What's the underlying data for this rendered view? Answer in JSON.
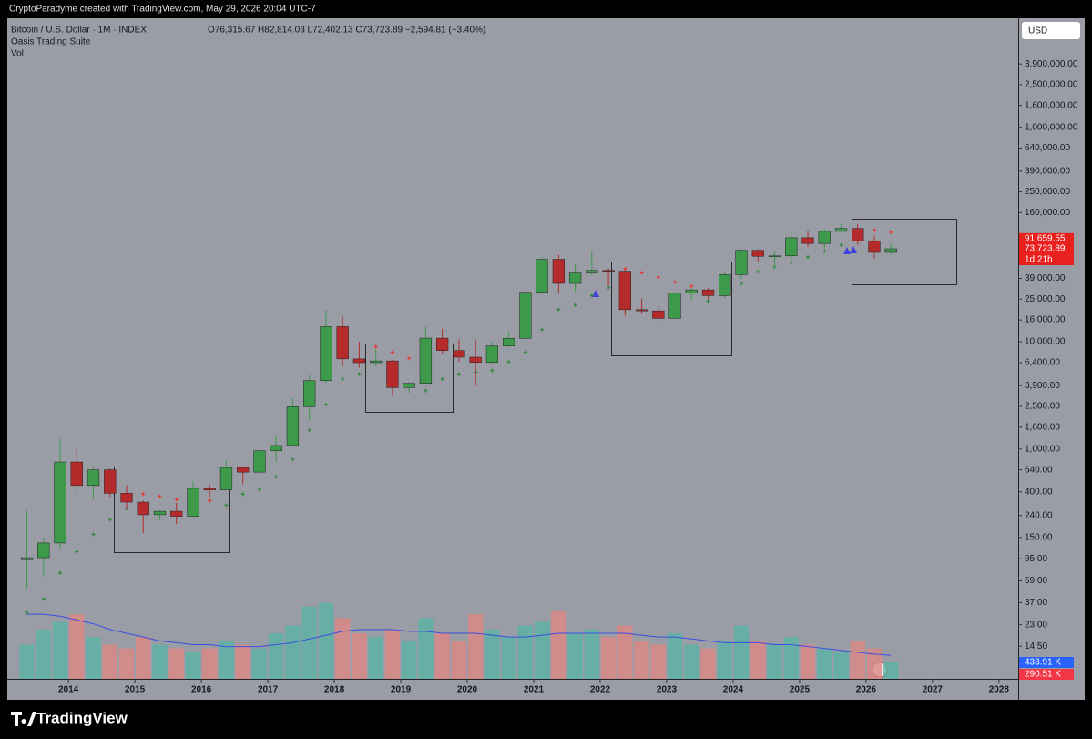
{
  "chart_data": {
    "type": "candlestick",
    "attribution": "CryptoParadyme created with TradingView.com, May 29, 2026 20:04 UTC-7",
    "title": "Bitcoin / U.S. Dollar · 1M · INDEX",
    "ohlc_line": "O76,315.67 H82,814.03 L72,402.13 C73,723.89 −2,594.81 (−3.40%)",
    "indicator": "Oasis Trading Suite",
    "volume_name": "Vol",
    "currency": "USD",
    "brand": "TradingView",
    "log_scale": true,
    "up_color": "#3c9a4a",
    "down_color": "#b52a2a",
    "x": [
      2013.375,
      2013.625,
      2013.875,
      2014.125,
      2014.375,
      2014.625,
      2014.875,
      2015.125,
      2015.375,
      2015.625,
      2015.875,
      2016.125,
      2016.375,
      2016.625,
      2016.875,
      2017.125,
      2017.375,
      2017.625,
      2017.875,
      2018.125,
      2018.375,
      2018.625,
      2018.875,
      2019.125,
      2019.375,
      2019.625,
      2019.875,
      2020.125,
      2020.375,
      2020.625,
      2020.875,
      2021.125,
      2021.375,
      2021.625,
      2021.875,
      2022.125,
      2022.375,
      2022.625,
      2022.875,
      2023.125,
      2023.375,
      2023.625,
      2023.875,
      2024.125,
      2024.375,
      2024.625,
      2024.875,
      2025.125,
      2025.375,
      2025.625,
      2025.875,
      2026.125,
      2026.375
    ],
    "open": [
      93,
      97,
      133,
      757,
      457,
      640,
      387,
      320,
      244,
      263,
      236,
      430,
      416,
      673,
      609,
      963,
      1079,
      2480,
      4338,
      13860,
      6930,
      6390,
      6630,
      3740,
      4100,
      10820,
      8290,
      7190,
      6420,
      9140,
      10780,
      28990,
      58800,
      35040,
      43830,
      46310,
      45540,
      19930,
      19430,
      16550,
      28480,
      30480,
      26970,
      42280,
      71300,
      62680,
      63300,
      93430,
      82550,
      107150,
      114050,
      87500,
      68200
    ],
    "high": [
      266,
      150,
      1240,
      1000,
      680,
      660,
      460,
      330,
      265,
      315,
      500,
      465,
      780,
      680,
      980,
      1350,
      2990,
      4980,
      19780,
      17250,
      9990,
      8490,
      6780,
      4210,
      13880,
      13200,
      10540,
      10500,
      10070,
      12480,
      29300,
      61780,
      64900,
      53000,
      69000,
      48240,
      47440,
      25210,
      21480,
      29190,
      31430,
      31800,
      44700,
      73780,
      72800,
      70000,
      108300,
      109300,
      111900,
      124100,
      126200,
      97900,
      82814.03
    ],
    "low": [
      50,
      65,
      118,
      410,
      340,
      360,
      275,
      165,
      215,
      200,
      236,
      360,
      416,
      470,
      600,
      750,
      1070,
      1840,
      4110,
      5920,
      5760,
      5860,
      3120,
      3350,
      4080,
      7710,
      6510,
      3850,
      6150,
      8900,
      10370,
      28130,
      28800,
      29280,
      42000,
      32930,
      17570,
      18150,
      15480,
      16490,
      24750,
      24920,
      26560,
      38500,
      56500,
      49000,
      58900,
      76600,
      74400,
      105300,
      80600,
      60000,
      65000
    ],
    "close": [
      97,
      133,
      757,
      457,
      640,
      387,
      320,
      244,
      263,
      236,
      430,
      416,
      673,
      609,
      963,
      1079,
      2480,
      4338,
      13860,
      6930,
      6390,
      6630,
      3740,
      4100,
      10820,
      8290,
      7190,
      6420,
      9140,
      10780,
      28990,
      58800,
      35040,
      43830,
      46310,
      45540,
      19930,
      19430,
      16550,
      28480,
      30480,
      26970,
      42280,
      71300,
      62680,
      63300,
      93430,
      82550,
      107150,
      114050,
      87500,
      68200,
      73723.89
    ],
    "trail": {
      "values": [
        30,
        40,
        70,
        110,
        160,
        220,
        280,
        380,
        360,
        340,
        320,
        330,
        300,
        380,
        420,
        550,
        800,
        1500,
        2600,
        4500,
        5000,
        9000,
        8000,
        7000,
        3500,
        4500,
        5000,
        5200,
        5400,
        6500,
        8000,
        13000,
        20000,
        22000,
        27000,
        32000,
        48000,
        44000,
        40000,
        36000,
        33000,
        24000,
        27000,
        35000,
        45000,
        50000,
        55000,
        62000,
        70000,
        80000,
        90000,
        110000,
        105000
      ],
      "colors": [
        "#2f8a3a",
        "#2f8a3a",
        "#2f8a3a",
        "#2f8a3a",
        "#2f8a3a",
        "#2f8a3a",
        "#2f8a3a",
        "#e8372f",
        "#e8372f",
        "#e8372f",
        "#e8372f",
        "#e8372f",
        "#2f8a3a",
        "#2f8a3a",
        "#2f8a3a",
        "#2f8a3a",
        "#2f8a3a",
        "#2f8a3a",
        "#2f8a3a",
        "#2f8a3a",
        "#2f8a3a",
        "#e8372f",
        "#e8372f",
        "#e8372f",
        "#2f8a3a",
        "#2f8a3a",
        "#2f8a3a",
        "#2f8a3a",
        "#2f8a3a",
        "#2f8a3a",
        "#2f8a3a",
        "#2f8a3a",
        "#2f8a3a",
        "#2f8a3a",
        "#2f8a3a",
        "#2f8a3a",
        "#e8372f",
        "#e8372f",
        "#e8372f",
        "#e8372f",
        "#e8372f",
        "#2f8a3a",
        "#2f8a3a",
        "#2f8a3a",
        "#2f8a3a",
        "#2f8a3a",
        "#2f8a3a",
        "#2f8a3a",
        "#2f8a3a",
        "#2f8a3a",
        "#2f8a3a",
        "#e8372f",
        "#e8372f"
      ]
    },
    "volume": {
      "values": [
        900,
        1300,
        1500,
        1700,
        1100,
        900,
        800,
        1100,
        900,
        800,
        700,
        800,
        1000,
        900,
        800,
        1200,
        1400,
        1900,
        2000,
        1600,
        1200,
        1100,
        1300,
        1000,
        1600,
        1200,
        1000,
        1700,
        1300,
        1100,
        1400,
        1500,
        1800,
        1200,
        1300,
        1100,
        1400,
        1000,
        900,
        1200,
        900,
        800,
        1000,
        1400,
        1000,
        900,
        1100,
        900,
        800,
        700,
        1000,
        800,
        433.91
      ],
      "ma": [
        1700,
        1700,
        1650,
        1550,
        1450,
        1300,
        1200,
        1100,
        1000,
        950,
        900,
        900,
        850,
        850,
        850,
        900,
        950,
        1050,
        1150,
        1250,
        1300,
        1300,
        1300,
        1250,
        1250,
        1200,
        1200,
        1200,
        1150,
        1100,
        1100,
        1150,
        1200,
        1200,
        1200,
        1200,
        1200,
        1150,
        1100,
        1100,
        1050,
        1000,
        950,
        950,
        950,
        900,
        900,
        850,
        800,
        750,
        700,
        650,
        620
      ],
      "ylim": [
        0,
        2400
      ],
      "up_color": "#5eb3a6",
      "down_color": "#d98a86",
      "ma_color": "#3b4fe0"
    },
    "xlim": [
      2013.08,
      2028.29
    ],
    "xticks": [
      2014,
      2015,
      2016,
      2017,
      2018,
      2019,
      2020,
      2021,
      2022,
      2023,
      2024,
      2025,
      2026,
      2027,
      2028
    ],
    "ylim": [
      7.2,
      10000000
    ],
    "yticks": [
      {
        "value": 14.5,
        "label": "14.50"
      },
      {
        "value": 23,
        "label": "23.00"
      },
      {
        "value": 37,
        "label": "37.00"
      },
      {
        "value": 59,
        "label": "59.00"
      },
      {
        "value": 95,
        "label": "95.00"
      },
      {
        "value": 150,
        "label": "150.00"
      },
      {
        "value": 240,
        "label": "240.00"
      },
      {
        "value": 400,
        "label": "400.00"
      },
      {
        "value": 640,
        "label": "640.00"
      },
      {
        "value": 1000,
        "label": "1,000.00"
      },
      {
        "value": 1600,
        "label": "1,600.00"
      },
      {
        "value": 2500,
        "label": "2,500.00"
      },
      {
        "value": 3900,
        "label": "3,900.00"
      },
      {
        "value": 6400,
        "label": "6,400.00"
      },
      {
        "value": 10000,
        "label": "10,000.00"
      },
      {
        "value": 16000,
        "label": "16,000.00"
      },
      {
        "value": 25000,
        "label": "25,000.00"
      },
      {
        "value": 39000,
        "label": "39,000.00"
      },
      {
        "value": 160000,
        "label": "160,000.00"
      },
      {
        "value": 250000,
        "label": "250,000.00"
      },
      {
        "value": 390000,
        "label": "390,000.00"
      },
      {
        "value": 640000,
        "label": "640,000.00"
      },
      {
        "value": 1000000,
        "label": "1,000,000.00"
      },
      {
        "value": 1600000,
        "label": "1,600,000.00"
      },
      {
        "value": 2500000,
        "label": "2,500,000.00"
      },
      {
        "value": 3900000,
        "label": "3,900,000.00"
      }
    ],
    "price_labels": [
      {
        "value": 91659.55,
        "label": "91,659.55"
      },
      {
        "value": 73723.89,
        "label": "73,723.89"
      }
    ],
    "countdown": "1d 21h",
    "volume_labels": [
      {
        "value": 433.91,
        "label": "433.91 K",
        "color": "#2962ff"
      },
      {
        "value": 290.51,
        "label": "290.51 K",
        "color": "#f23645"
      }
    ]
  }
}
